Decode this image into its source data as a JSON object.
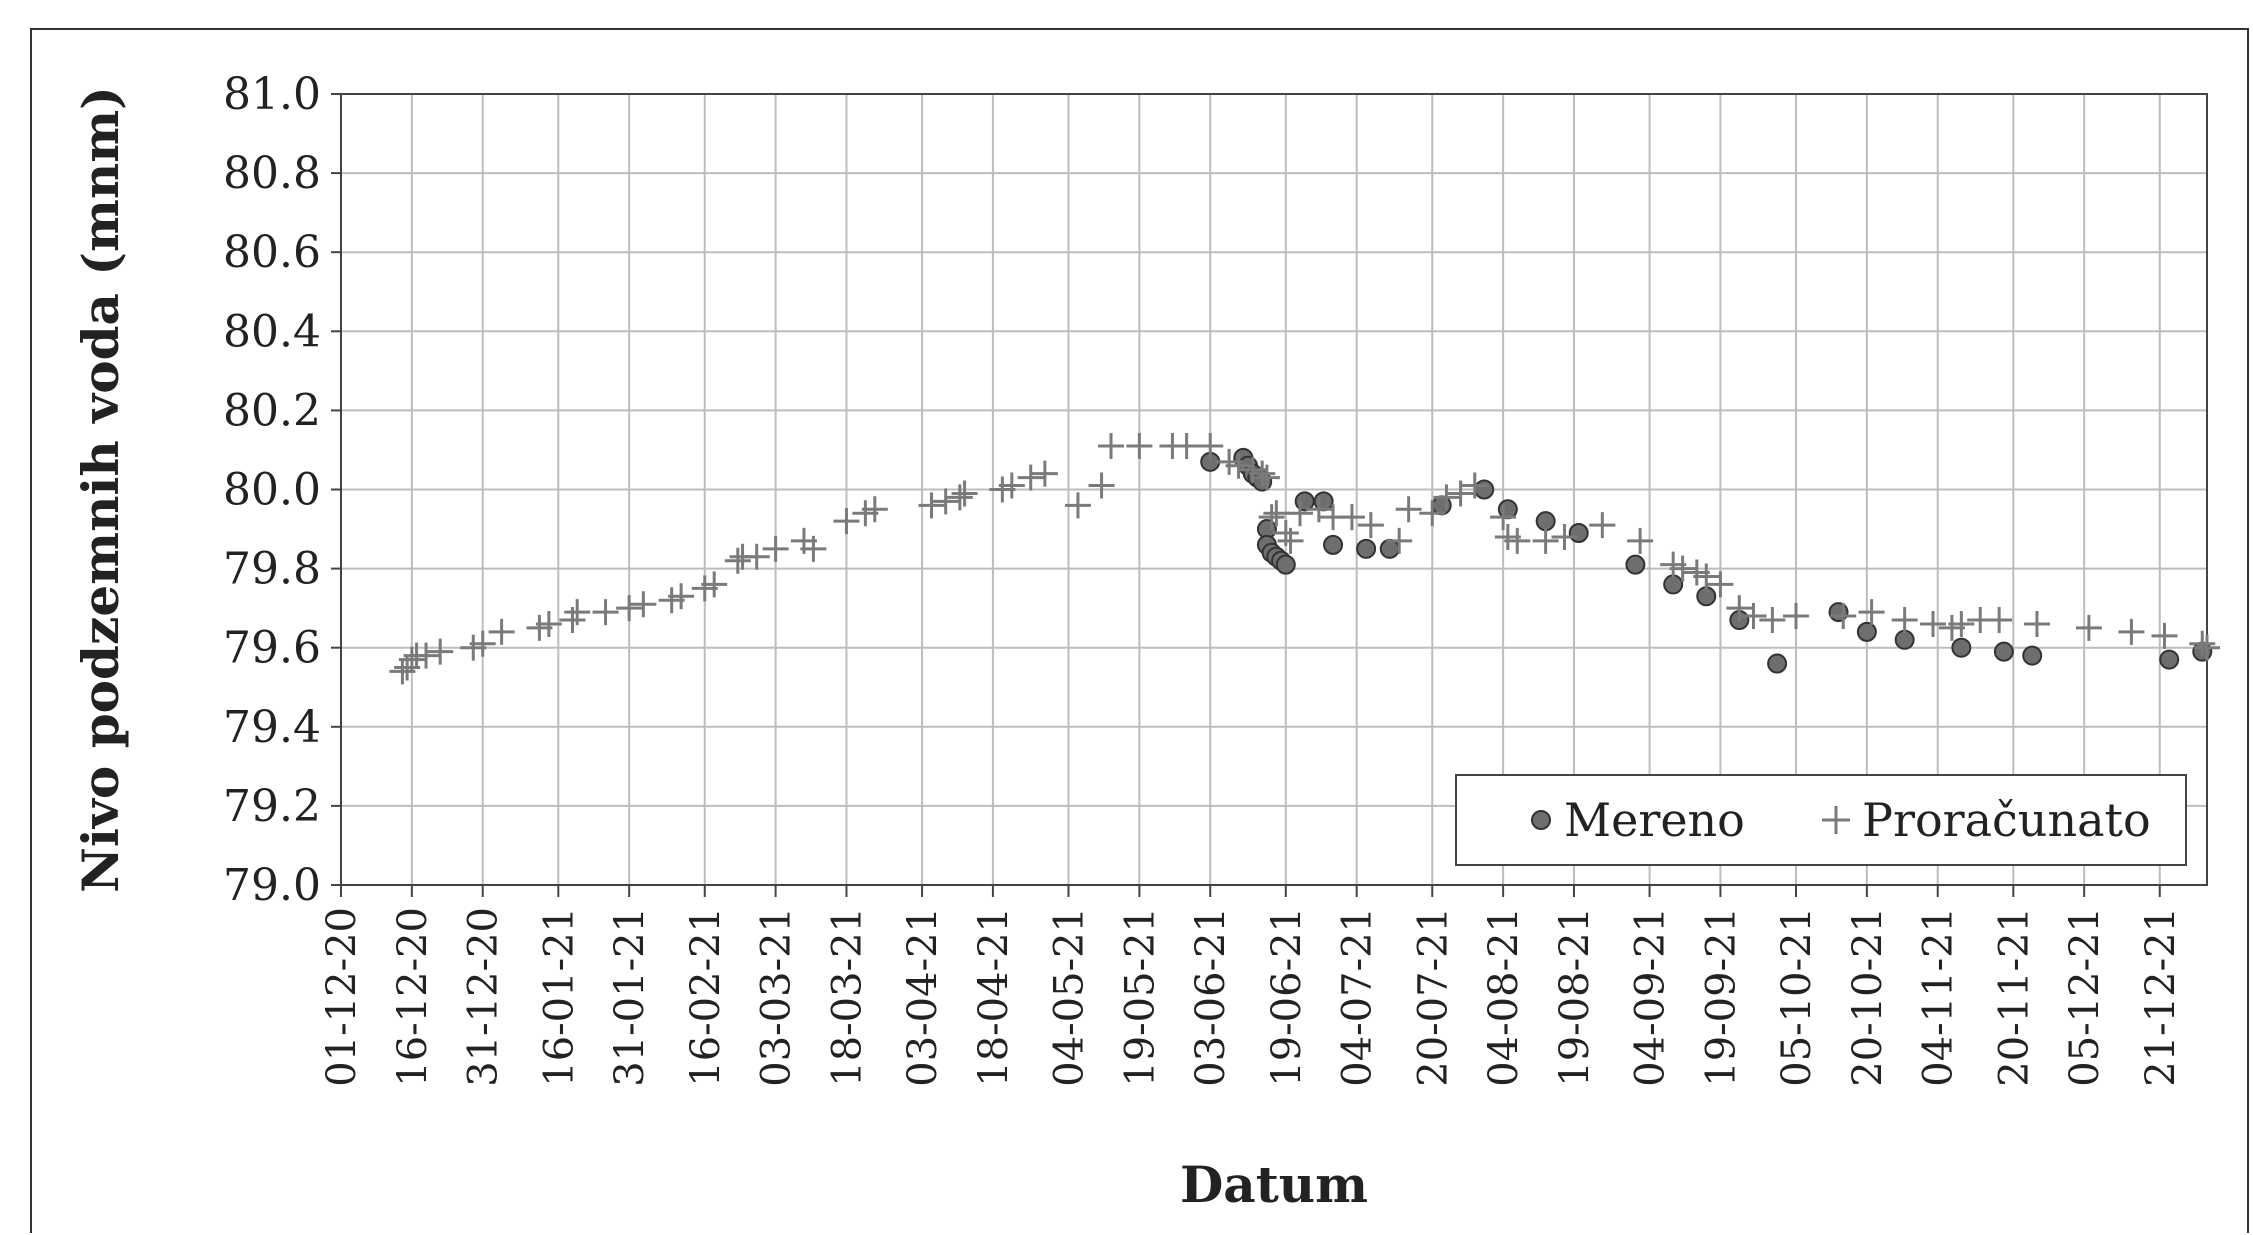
{
  "chart_data": {
    "type": "scatter",
    "xlabel": "Datum",
    "ylabel": "Nivo podzemnih voda (mnm)",
    "ylim": [
      79.0,
      81.0
    ],
    "y_ticks": [
      "79.0",
      "79.2",
      "79.4",
      "79.6",
      "79.8",
      "80.0",
      "80.2",
      "80.4",
      "80.6",
      "80.8",
      "81.0"
    ],
    "x_range": [
      "2020-12-01",
      "2021-12-31"
    ],
    "x_tick_dates": [
      "2020-12-01",
      "2020-12-16",
      "2020-12-31",
      "2021-01-16",
      "2021-01-31",
      "2021-02-16",
      "2021-03-03",
      "2021-03-18",
      "2021-04-03",
      "2021-04-18",
      "2021-05-04",
      "2021-05-19",
      "2021-06-03",
      "2021-06-19",
      "2021-07-04",
      "2021-07-20",
      "2021-08-04",
      "2021-08-19",
      "2021-09-04",
      "2021-09-19",
      "2021-10-05",
      "2021-10-20",
      "2021-11-04",
      "2021-11-20",
      "2021-12-05",
      "2021-12-21"
    ],
    "x_tick_labels": [
      "01-12-20",
      "16-12-20",
      "31-12-20",
      "16-01-21",
      "31-01-21",
      "16-02-21",
      "03-03-21",
      "18-03-21",
      "03-04-21",
      "18-04-21",
      "04-05-21",
      "19-05-21",
      "03-06-21",
      "19-06-21",
      "04-07-21",
      "20-07-21",
      "04-08-21",
      "19-08-21",
      "04-09-21",
      "19-09-21",
      "05-10-21",
      "20-10-21",
      "04-11-21",
      "20-11-21",
      "05-12-21",
      "21-12-21"
    ],
    "grid": true,
    "legend_position": "bottom-right",
    "series": [
      {
        "name": "Mereno",
        "marker": "circle",
        "color": "#6e6e6e",
        "points": [
          [
            "2021-06-03",
            80.07
          ],
          [
            "2021-06-10",
            80.08
          ],
          [
            "2021-06-11",
            80.06
          ],
          [
            "2021-06-12",
            80.04
          ],
          [
            "2021-06-13",
            80.03
          ],
          [
            "2021-06-14",
            80.02
          ],
          [
            "2021-06-15",
            79.9
          ],
          [
            "2021-06-15",
            79.86
          ],
          [
            "2021-06-16",
            79.84
          ],
          [
            "2021-06-17",
            79.83
          ],
          [
            "2021-06-18",
            79.82
          ],
          [
            "2021-06-19",
            79.81
          ],
          [
            "2021-06-23",
            79.97
          ],
          [
            "2021-06-27",
            79.97
          ],
          [
            "2021-06-29",
            79.86
          ],
          [
            "2021-07-06",
            79.85
          ],
          [
            "2021-07-11",
            79.85
          ],
          [
            "2021-07-22",
            79.96
          ],
          [
            "2021-07-31",
            80.0
          ],
          [
            "2021-08-05",
            79.95
          ],
          [
            "2021-08-13",
            79.92
          ],
          [
            "2021-08-20",
            79.89
          ],
          [
            "2021-09-01",
            79.81
          ],
          [
            "2021-09-09",
            79.76
          ],
          [
            "2021-09-16",
            79.73
          ],
          [
            "2021-09-23",
            79.67
          ],
          [
            "2021-10-01",
            79.56
          ],
          [
            "2021-10-14",
            79.69
          ],
          [
            "2021-10-20",
            79.64
          ],
          [
            "2021-10-28",
            79.62
          ],
          [
            "2021-11-09",
            79.6
          ],
          [
            "2021-11-18",
            79.59
          ],
          [
            "2021-11-24",
            79.58
          ],
          [
            "2021-12-23",
            79.57
          ],
          [
            "2021-12-30",
            79.59
          ]
        ]
      },
      {
        "name": "Proračunato",
        "marker": "plus",
        "color": "#7a7a7a",
        "points": [
          [
            "2020-12-14",
            79.54
          ],
          [
            "2020-12-15",
            79.55
          ],
          [
            "2020-12-16",
            79.57
          ],
          [
            "2020-12-17",
            79.58
          ],
          [
            "2020-12-19",
            79.58
          ],
          [
            "2020-12-22",
            79.59
          ],
          [
            "2020-12-29",
            79.6
          ],
          [
            "2020-12-31",
            79.61
          ],
          [
            "2021-01-04",
            79.64
          ],
          [
            "2021-01-12",
            79.65
          ],
          [
            "2021-01-14",
            79.66
          ],
          [
            "2021-01-19",
            79.67
          ],
          [
            "2021-01-20",
            79.69
          ],
          [
            "2021-01-26",
            79.69
          ],
          [
            "2021-01-31",
            79.7
          ],
          [
            "2021-02-03",
            79.71
          ],
          [
            "2021-02-09",
            79.72
          ],
          [
            "2021-02-11",
            79.73
          ],
          [
            "2021-02-16",
            79.75
          ],
          [
            "2021-02-18",
            79.76
          ],
          [
            "2021-02-23",
            79.82
          ],
          [
            "2021-02-24",
            79.83
          ],
          [
            "2021-02-27",
            79.83
          ],
          [
            "2021-03-03",
            79.85
          ],
          [
            "2021-03-09",
            79.87
          ],
          [
            "2021-03-11",
            79.85
          ],
          [
            "2021-03-18",
            79.92
          ],
          [
            "2021-03-22",
            79.94
          ],
          [
            "2021-03-24",
            79.95
          ],
          [
            "2021-04-05",
            79.96
          ],
          [
            "2021-04-08",
            79.97
          ],
          [
            "2021-04-11",
            79.98
          ],
          [
            "2021-04-12",
            79.99
          ],
          [
            "2021-04-20",
            80.0
          ],
          [
            "2021-04-22",
            80.01
          ],
          [
            "2021-04-26",
            80.03
          ],
          [
            "2021-04-29",
            80.04
          ],
          [
            "2021-05-06",
            79.96
          ],
          [
            "2021-05-11",
            80.01
          ],
          [
            "2021-05-13",
            80.11
          ],
          [
            "2021-05-19",
            80.11
          ],
          [
            "2021-05-26",
            80.11
          ],
          [
            "2021-05-29",
            80.11
          ],
          [
            "2021-06-03",
            80.11
          ],
          [
            "2021-06-07",
            80.07
          ],
          [
            "2021-06-09",
            80.06
          ],
          [
            "2021-06-12",
            80.05
          ],
          [
            "2021-06-14",
            80.04
          ],
          [
            "2021-06-15",
            80.03
          ],
          [
            "2021-06-16",
            79.93
          ],
          [
            "2021-06-17",
            79.94
          ],
          [
            "2021-06-19",
            79.89
          ],
          [
            "2021-06-20",
            79.87
          ],
          [
            "2021-06-22",
            79.94
          ],
          [
            "2021-06-26",
            79.95
          ],
          [
            "2021-06-29",
            79.93
          ],
          [
            "2021-07-03",
            79.93
          ],
          [
            "2021-07-07",
            79.91
          ],
          [
            "2021-07-13",
            79.87
          ],
          [
            "2021-07-15",
            79.95
          ],
          [
            "2021-07-20",
            79.94
          ],
          [
            "2021-07-23",
            79.98
          ],
          [
            "2021-07-26",
            79.99
          ],
          [
            "2021-07-29",
            80.01
          ],
          [
            "2021-08-04",
            79.93
          ],
          [
            "2021-08-05",
            79.88
          ],
          [
            "2021-08-07",
            79.87
          ],
          [
            "2021-08-13",
            79.87
          ],
          [
            "2021-08-17",
            79.88
          ],
          [
            "2021-08-25",
            79.91
          ],
          [
            "2021-09-02",
            79.87
          ],
          [
            "2021-09-09",
            79.81
          ],
          [
            "2021-09-11",
            79.8
          ],
          [
            "2021-09-14",
            79.79
          ],
          [
            "2021-09-16",
            79.78
          ],
          [
            "2021-09-19",
            79.76
          ],
          [
            "2021-09-23",
            79.7
          ],
          [
            "2021-09-26",
            79.68
          ],
          [
            "2021-09-30",
            79.67
          ],
          [
            "2021-10-05",
            79.68
          ],
          [
            "2021-10-15",
            79.68
          ],
          [
            "2021-10-21",
            79.69
          ],
          [
            "2021-10-28",
            79.67
          ],
          [
            "2021-11-03",
            79.66
          ],
          [
            "2021-11-07",
            79.65
          ],
          [
            "2021-11-09",
            79.66
          ],
          [
            "2021-11-13",
            79.67
          ],
          [
            "2021-11-17",
            79.67
          ],
          [
            "2021-11-25",
            79.66
          ],
          [
            "2021-12-06",
            79.65
          ],
          [
            "2021-12-15",
            79.64
          ],
          [
            "2021-12-22",
            79.63
          ],
          [
            "2021-12-30",
            79.61
          ],
          [
            "2021-12-31",
            79.6
          ]
        ]
      }
    ]
  }
}
